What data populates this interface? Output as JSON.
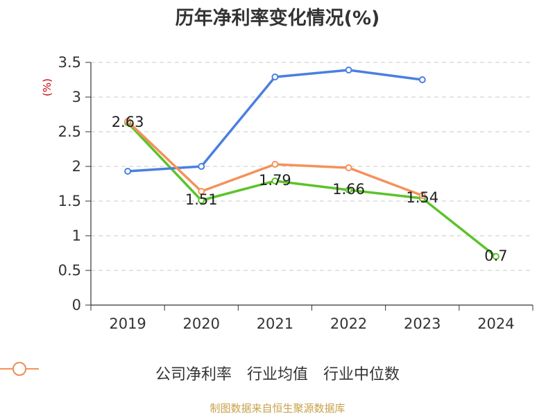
{
  "title": "历年净利率变化情况(%)",
  "source": "制图数据来自恒生聚源数据库",
  "colors": {
    "source_text": "#c8a04a",
    "ylabel": "#cc0000",
    "axis": "#333333",
    "grid": "#c8c8c8"
  },
  "chart_data": {
    "type": "line",
    "title": "历年净利率变化情况(%)",
    "ylabel": "(%)",
    "xlabel": "",
    "categories": [
      "2019",
      "2020",
      "2021",
      "2022",
      "2023",
      "2024"
    ],
    "ylim": [
      0,
      3.5
    ],
    "yticks": [
      "0",
      "0.5",
      "1",
      "1.5",
      "2",
      "2.5",
      "3",
      "3.5"
    ],
    "grid": true,
    "legend_position": "bottom",
    "series": [
      {
        "name": "公司净利率",
        "color": "#5cc32a",
        "values": [
          2.63,
          1.51,
          1.79,
          1.66,
          1.54,
          0.7
        ],
        "labels": [
          "2.63",
          "1.51",
          "1.79",
          "1.66",
          "1.54",
          "0.7"
        ]
      },
      {
        "name": "行业均值",
        "color": "#4a7fe0",
        "values": [
          1.93,
          2.0,
          3.29,
          3.39,
          3.25,
          null
        ]
      },
      {
        "name": "行业中位数",
        "color": "#f5915a",
        "values": [
          2.65,
          1.64,
          2.03,
          1.98,
          1.58,
          null
        ]
      }
    ]
  }
}
